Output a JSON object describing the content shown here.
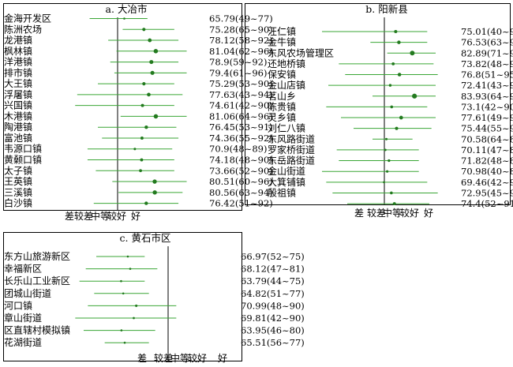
{
  "chart_data": [
    {
      "type": "forest",
      "title": "a. 大冶市",
      "axis_labels": [
        "差",
        "较差",
        "中等",
        "较好",
        "好"
      ],
      "xlim": [
        40,
        100
      ],
      "reference_line": 70,
      "rows": [
        {
          "name": "金海开发区",
          "label": "65.79(49~77)",
          "mean": 65.79,
          "min": 49,
          "max": 77
        },
        {
          "name": "陈洲农场",
          "label": "75.28(65~90)",
          "mean": 75.28,
          "min": 65,
          "max": 90
        },
        {
          "name": "龙港镇",
          "label": "78.12(58~92)",
          "mean": 78.12,
          "min": 58,
          "max": 92
        },
        {
          "name": "枫林镇",
          "label": "81.04(62~96)",
          "mean": 81.04,
          "min": 62,
          "max": 96
        },
        {
          "name": "洋港镇",
          "label": "78.9(59~92)",
          "mean": 78.9,
          "min": 59,
          "max": 92
        },
        {
          "name": "排市镇",
          "label": "79.4(61~96)",
          "mean": 79.4,
          "min": 61,
          "max": 96
        },
        {
          "name": "大王镇",
          "label": "75.29(53~90)",
          "mean": 75.29,
          "min": 53,
          "max": 90
        },
        {
          "name": "浮屠镇",
          "label": "77.63(43~94)",
          "mean": 77.63,
          "min": 43,
          "max": 94
        },
        {
          "name": "兴国镇",
          "label": "74.61(42~90)",
          "mean": 74.61,
          "min": 42,
          "max": 90
        },
        {
          "name": "木港镇",
          "label": "81.06(64~96)",
          "mean": 81.06,
          "min": 64,
          "max": 96
        },
        {
          "name": "陶港镇",
          "label": "76.45(53~91)",
          "mean": 76.45,
          "min": 53,
          "max": 91
        },
        {
          "name": "富池镇",
          "label": "74.36(55~92)",
          "mean": 74.36,
          "min": 55,
          "max": 92
        },
        {
          "name": "韦源口镇",
          "label": "70.9(48~89)",
          "mean": 70.9,
          "min": 48,
          "max": 89
        },
        {
          "name": "黄颡口镇",
          "label": "74.18(48~90)",
          "mean": 74.18,
          "min": 48,
          "max": 90
        },
        {
          "name": "太子镇",
          "label": "73.66(52~90)",
          "mean": 73.66,
          "min": 52,
          "max": 90
        },
        {
          "name": "王英镇",
          "label": "80.51(60~96)",
          "mean": 80.51,
          "min": 60,
          "max": 96
        },
        {
          "name": "三溪镇",
          "label": "80.56(63~94)",
          "mean": 80.56,
          "min": 63,
          "max": 94
        },
        {
          "name": "白沙镇",
          "label": "76.42(51~92)",
          "mean": 76.42,
          "min": 51,
          "max": 92
        }
      ]
    },
    {
      "type": "forest",
      "title": "b. 阳新县",
      "axis_labels": [
        "差",
        "较差",
        "中等",
        "较好",
        "好"
      ],
      "xlim": [
        40,
        100
      ],
      "reference_line": 70,
      "rows": [
        {
          "name": "汪仁镇",
          "label": "75.01(40~90)",
          "mean": 75.01,
          "min": 40,
          "max": 90
        },
        {
          "name": "金牛镇",
          "label": "76.53(63~90)",
          "mean": 76.53,
          "min": 63,
          "max": 90
        },
        {
          "name": "东风农场管理区",
          "label": "82.89(71~94)",
          "mean": 82.89,
          "min": 71,
          "max": 94
        },
        {
          "name": "还地桥镇",
          "label": "73.82(48~93)",
          "mean": 73.82,
          "min": 48,
          "max": 93
        },
        {
          "name": "保安镇",
          "label": "76.8(51~95)",
          "mean": 76.8,
          "min": 51,
          "max": 95
        },
        {
          "name": "金山店镇",
          "label": "72.41(43~94)",
          "mean": 72.41,
          "min": 43,
          "max": 94
        },
        {
          "name": "茗山乡",
          "label": "83.93(64~94)",
          "mean": 83.93,
          "min": 64,
          "max": 94
        },
        {
          "name": "陈贵镇",
          "label": "73.1(42~90)",
          "mean": 73.1,
          "min": 42,
          "max": 90
        },
        {
          "name": "灵乡镇",
          "label": "77.61(49~94)",
          "mean": 77.61,
          "min": 49,
          "max": 94
        },
        {
          "name": "刘仁八镇",
          "label": "75.44(55~92)",
          "mean": 75.44,
          "min": 55,
          "max": 92
        },
        {
          "name": "东风路街道",
          "label": "70.58(64~83)",
          "mean": 70.58,
          "min": 64,
          "max": 83
        },
        {
          "name": "罗家桥街道",
          "label": "70.11(47~86)",
          "mean": 70.11,
          "min": 47,
          "max": 86
        },
        {
          "name": "东岳路街道",
          "label": "71.82(48~86)",
          "mean": 71.82,
          "min": 48,
          "max": 86
        },
        {
          "name": "金山街道",
          "label": "70.98(40~86)",
          "mean": 70.98,
          "min": 40,
          "max": 86
        },
        {
          "name": "大箕铺镇",
          "label": "69.46(42~90)",
          "mean": 69.46,
          "min": 42,
          "max": 90
        },
        {
          "name": "殷祖镇",
          "label": "72.95(45~95)",
          "mean": 72.95,
          "min": 45,
          "max": 95
        },
        {
          "name": "",
          "label": "74.4(52~91)",
          "mean": 74.4,
          "min": 52,
          "max": 91
        }
      ]
    },
    {
      "type": "forest",
      "title": "c. 黄石市区",
      "axis_labels": [
        "差",
        "较差",
        "中等",
        "较好",
        "好"
      ],
      "xlim": [
        40,
        100
      ],
      "reference_line": 70,
      "rows": [
        {
          "name": "东方山旅游新区",
          "label": "66.97(52~75)",
          "mean": 66.97,
          "min": 52,
          "max": 75
        },
        {
          "name": "幸福新区",
          "label": "68.12(47~81)",
          "mean": 68.12,
          "min": 47,
          "max": 81
        },
        {
          "name": "长乐山工业新区",
          "label": "63.79(44~75)",
          "mean": 63.79,
          "min": 44,
          "max": 75
        },
        {
          "name": "团城山街道",
          "label": "64.82(51~77)",
          "mean": 64.82,
          "min": 51,
          "max": 77
        },
        {
          "name": "河口镇",
          "label": "70.99(48~90)",
          "mean": 70.99,
          "min": 48,
          "max": 90
        },
        {
          "name": "章山街道",
          "label": "69.81(42~90)",
          "mean": 69.81,
          "min": 42,
          "max": 90
        },
        {
          "name": "区直辖村模拟镇",
          "label": "63.95(46~80)",
          "mean": 63.95,
          "min": 46,
          "max": 80
        },
        {
          "name": "花湖街道",
          "label": "65.51(56~77)",
          "mean": 65.51,
          "min": 56,
          "max": 77
        }
      ]
    }
  ],
  "colors": {
    "line": "#3aa635",
    "dot": "#237a1f",
    "ref": "#000000"
  }
}
